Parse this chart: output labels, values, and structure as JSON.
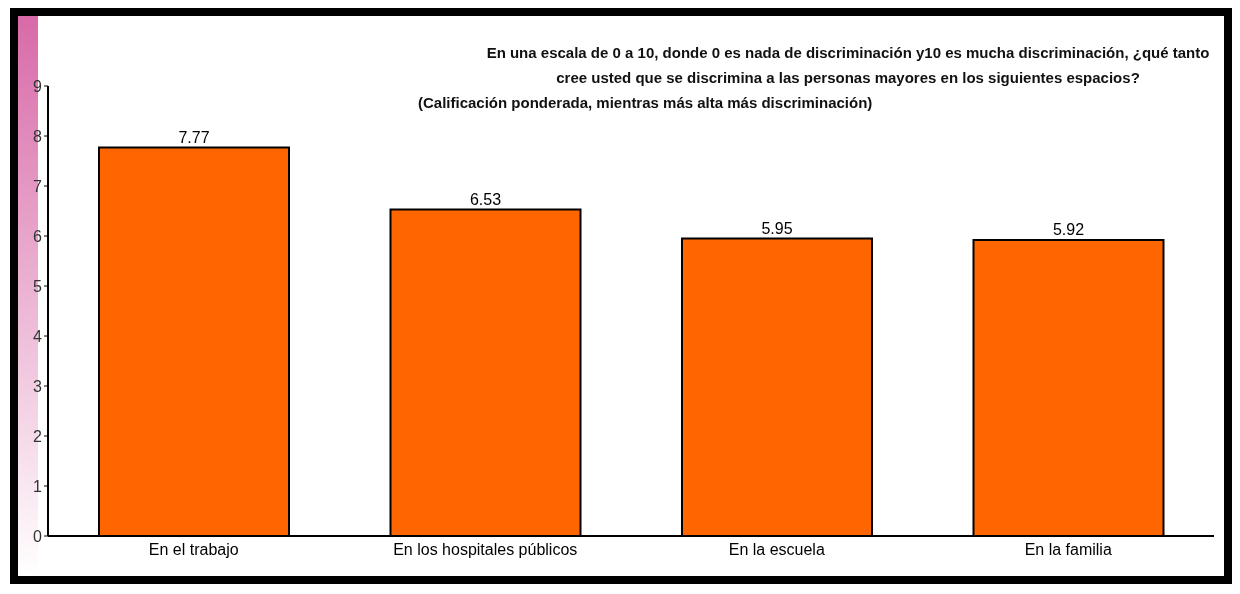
{
  "chart_data": {
    "type": "bar",
    "title": "En una escala de 0 a 10, donde 0 es nada de discriminación y10 es mucha discriminación, ¿qué tanto cree usted que se discrimina a las personas mayores en los siguientes espacios?",
    "subtitle": "(Calificación ponderada, mientras más alta más discriminación)",
    "categories": [
      "En el trabajo",
      "En los hospitales públicos",
      "En la escuela",
      "En la familia"
    ],
    "values": [
      7.77,
      6.53,
      5.95,
      5.92
    ],
    "color": "#ff6600",
    "ylim": [
      0,
      9
    ],
    "yticks": [
      0,
      1,
      2,
      3,
      4,
      5,
      6,
      7,
      8,
      9
    ],
    "grid": false,
    "data_labels": true
  }
}
